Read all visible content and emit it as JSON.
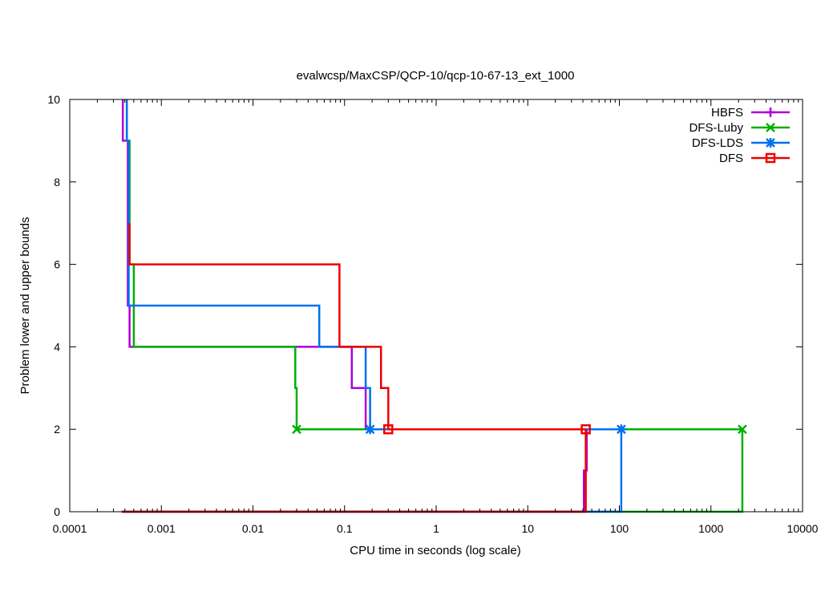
{
  "chart_data": {
    "type": "line",
    "title": "evalwcsp/MaxCSP/QCP-10/qcp-10-67-13_ext_1000",
    "xlabel": "CPU time in seconds (log scale)",
    "ylabel": "Problem lower and upper bounds",
    "xscale": "log",
    "xlim": [
      0.0001,
      10000
    ],
    "ylim": [
      0,
      10
    ],
    "xticks": [
      0.0001,
      0.001,
      0.01,
      0.1,
      1,
      10,
      100,
      1000,
      10000
    ],
    "xtick_labels": [
      "0.0001",
      "0.001",
      "0.01",
      "0.1",
      "1",
      "10",
      "100",
      "1000",
      "10000"
    ],
    "yticks": [
      0,
      2,
      4,
      6,
      8,
      10
    ],
    "ytick_labels": [
      "0",
      "2",
      "4",
      "6",
      "8",
      "10"
    ],
    "grid": false,
    "legend_position": "top-right",
    "series": [
      {
        "name": "HBFS",
        "color": "#b000d8",
        "marker": "plus",
        "upper": {
          "x": [
            0.00038,
            0.00038,
            0.00043,
            0.00043,
            0.00045,
            0.00045,
            0.12,
            0.12,
            0.17,
            0.17,
            0.19
          ],
          "y": [
            10,
            9,
            9,
            5,
            5,
            4,
            4,
            3,
            3,
            2,
            2
          ]
        },
        "lower": {
          "x": [
            0.00037,
            41,
            41,
            44,
            44,
            44
          ],
          "y": [
            0,
            0,
            1,
            1,
            2,
            2
          ]
        },
        "markers": []
      },
      {
        "name": "DFS-Luby",
        "color": "#00b000",
        "marker": "x",
        "upper": {
          "x": [
            0.00042,
            0.00042,
            0.00045,
            0.00045,
            0.0005,
            0.0005,
            0.029,
            0.029,
            0.03,
            0.03,
            2200
          ],
          "y": [
            10,
            9,
            9,
            6,
            6,
            4,
            4,
            3,
            3,
            2,
            2
          ]
        },
        "lower": {
          "x": [
            0.00037,
            2200,
            2200
          ],
          "y": [
            0,
            0,
            2
          ]
        },
        "markers": [
          {
            "x": 0.03,
            "y": 2
          },
          {
            "x": 2200,
            "y": 2
          }
        ]
      },
      {
        "name": "DFS-LDS",
        "color": "#0070f0",
        "marker": "star",
        "upper": {
          "x": [
            0.00042,
            0.00042,
            0.00044,
            0.00044,
            0.053,
            0.053,
            0.17,
            0.17,
            0.19,
            0.19,
            105
          ],
          "y": [
            10,
            9,
            9,
            5,
            5,
            4,
            4,
            3,
            3,
            2,
            2
          ]
        },
        "lower": {
          "x": [
            0.00037,
            105,
            105
          ],
          "y": [
            0,
            0,
            2
          ]
        },
        "markers": [
          {
            "x": 0.19,
            "y": 2
          },
          {
            "x": 105,
            "y": 2
          }
        ]
      },
      {
        "name": "DFS",
        "color": "#ee0000",
        "marker": "square",
        "upper": {
          "x": [
            0.00045,
            0.00045,
            0.088,
            0.088,
            0.25,
            0.25,
            0.3,
            0.3,
            43
          ],
          "y": [
            7,
            6,
            6,
            4,
            4,
            3,
            3,
            2,
            2
          ]
        },
        "lower": {
          "x": [
            0.00037,
            43,
            43
          ],
          "y": [
            0,
            0,
            2
          ]
        },
        "markers": [
          {
            "x": 0.3,
            "y": 2
          },
          {
            "x": 43,
            "y": 2
          }
        ]
      }
    ]
  }
}
